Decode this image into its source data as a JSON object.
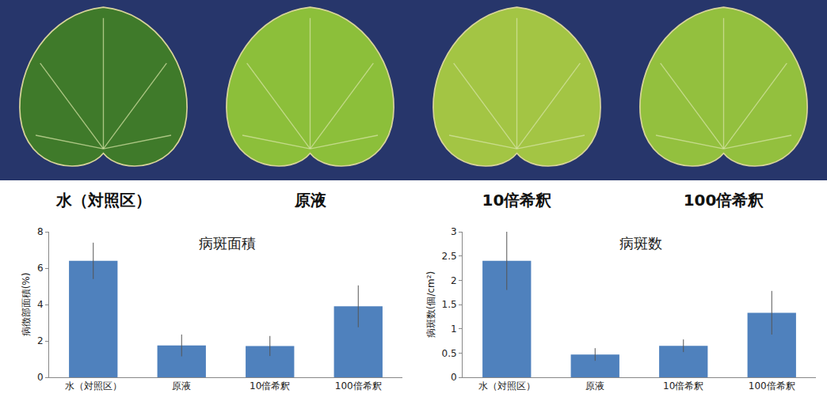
{
  "photo_panel": {
    "labels": [
      "水（対照区）",
      "原液",
      "10倍希釈",
      "100倍希釈"
    ]
  },
  "chart_data": [
    {
      "type": "bar",
      "title": "病斑面積",
      "y_label": "病徴部面積(%)",
      "categories": [
        "水（対照区）",
        "原液",
        "10倍希釈",
        "100倍希釈"
      ],
      "values": [
        6.4,
        1.75,
        1.72,
        3.9
      ],
      "errors": [
        1.0,
        0.6,
        0.55,
        1.15
      ],
      "color": "#4f81bd",
      "ylim": [
        0,
        8
      ],
      "yticks": [
        0,
        2,
        4,
        6,
        8
      ],
      "grid": false
    },
    {
      "type": "bar",
      "title": "病斑数",
      "y_label": "病斑数(個/cm²)",
      "categories": [
        "水（対照区）",
        "原液",
        "10倍希釈",
        "100倍希釈"
      ],
      "values": [
        2.4,
        0.47,
        0.65,
        1.33
      ],
      "errors": [
        0.6,
        0.13,
        0.13,
        0.45
      ],
      "color": "#4f81bd",
      "ylim": [
        0,
        3
      ],
      "yticks": [
        0,
        0.5,
        1,
        1.5,
        2,
        2.5,
        3
      ],
      "grid": false
    }
  ]
}
